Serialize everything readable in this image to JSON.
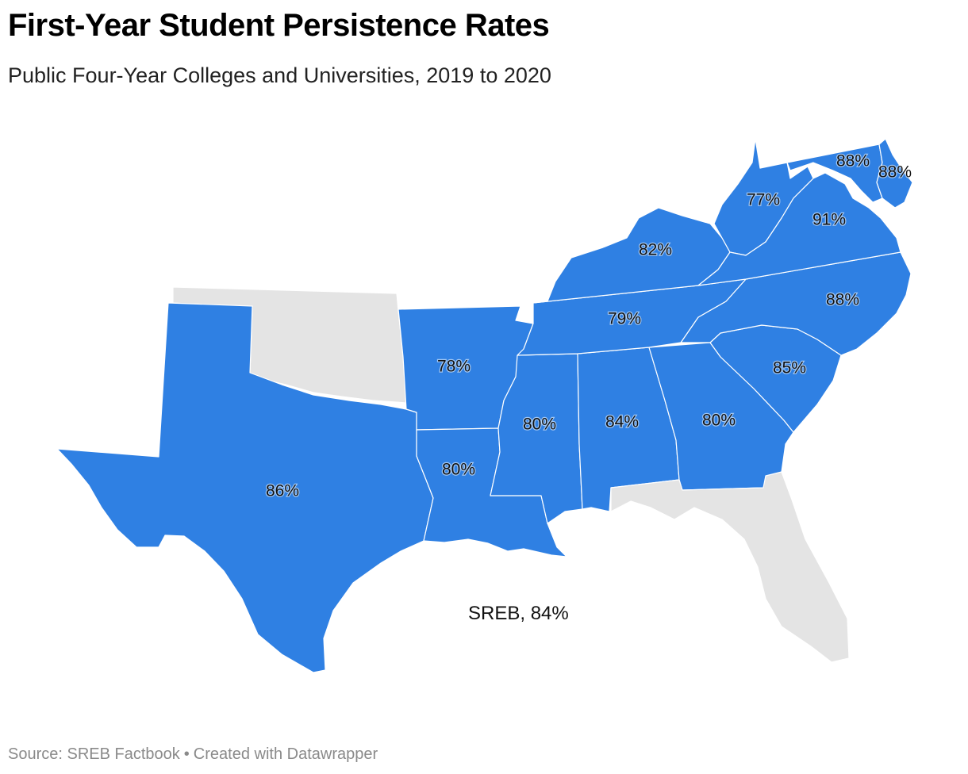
{
  "title": "First-Year Student Persistence Rates",
  "subtitle": "Public Four-Year Colleges and Universities, 2019 to 2020",
  "region_note": "SREB, 84%",
  "footer": {
    "source": "Source: SREB Factbook",
    "separator": "•",
    "credit": "Created with Datawrapper"
  },
  "colors": {
    "data_fill": "#2f80e3",
    "nodata_fill": "#e4e4e4",
    "border": "#ffffff"
  },
  "states": [
    {
      "id": "texas",
      "label": "86%"
    },
    {
      "id": "oklahoma",
      "label": ""
    },
    {
      "id": "arkansas",
      "label": "78%"
    },
    {
      "id": "louisiana",
      "label": "80%"
    },
    {
      "id": "mississippi",
      "label": "80%"
    },
    {
      "id": "alabama",
      "label": "84%"
    },
    {
      "id": "georgia",
      "label": "80%"
    },
    {
      "id": "florida",
      "label": ""
    },
    {
      "id": "south-carolina",
      "label": "85%"
    },
    {
      "id": "north-carolina",
      "label": "88%"
    },
    {
      "id": "tennessee",
      "label": "79%"
    },
    {
      "id": "kentucky",
      "label": "82%"
    },
    {
      "id": "west-virginia",
      "label": "77%"
    },
    {
      "id": "virginia",
      "label": "91%"
    },
    {
      "id": "maryland",
      "label": "88%"
    },
    {
      "id": "delaware",
      "label": "88%"
    }
  ]
}
